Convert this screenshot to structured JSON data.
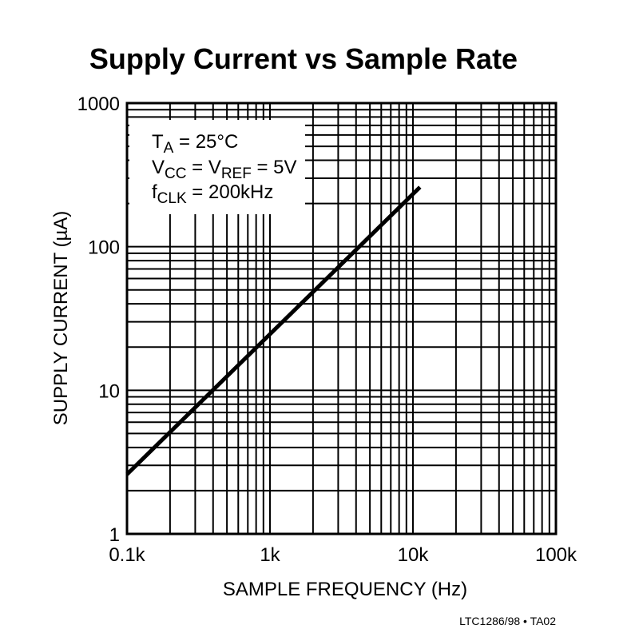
{
  "chart_data": {
    "type": "line",
    "title": "Supply Current vs Sample Rate",
    "xlabel": "SAMPLE FREQUENCY (Hz)",
    "ylabel": "SUPPLY CURRENT (µA)",
    "xscale": "log",
    "yscale": "log",
    "xlim": [
      100,
      100000
    ],
    "ylim": [
      1,
      1000
    ],
    "xticks": [
      100,
      1000,
      10000,
      100000
    ],
    "xtick_labels": [
      "0.1k",
      "1k",
      "10k",
      "100k"
    ],
    "yticks": [
      1,
      10,
      100,
      1000
    ],
    "ytick_labels": [
      "1",
      "10",
      "100",
      "1000"
    ],
    "grid": true,
    "series": [
      {
        "x": [
          100,
          11200
        ],
        "y": [
          2.6,
          260
        ]
      }
    ],
    "annotations": {
      "line1": {
        "main": "T",
        "sub": "A",
        "rest": " = 25°C"
      },
      "line2": {
        "main": "V",
        "sub": "CC",
        "mid": " = V",
        "sub2": "REF",
        "rest": " = 5V"
      },
      "line3": {
        "main": "f",
        "sub": "CLK",
        "rest": " = 200kHz"
      }
    },
    "footer": "LTC1286/98 • TA02",
    "colors": {
      "line": "#000000",
      "grid": "#000000",
      "background": "#ffffff"
    }
  }
}
